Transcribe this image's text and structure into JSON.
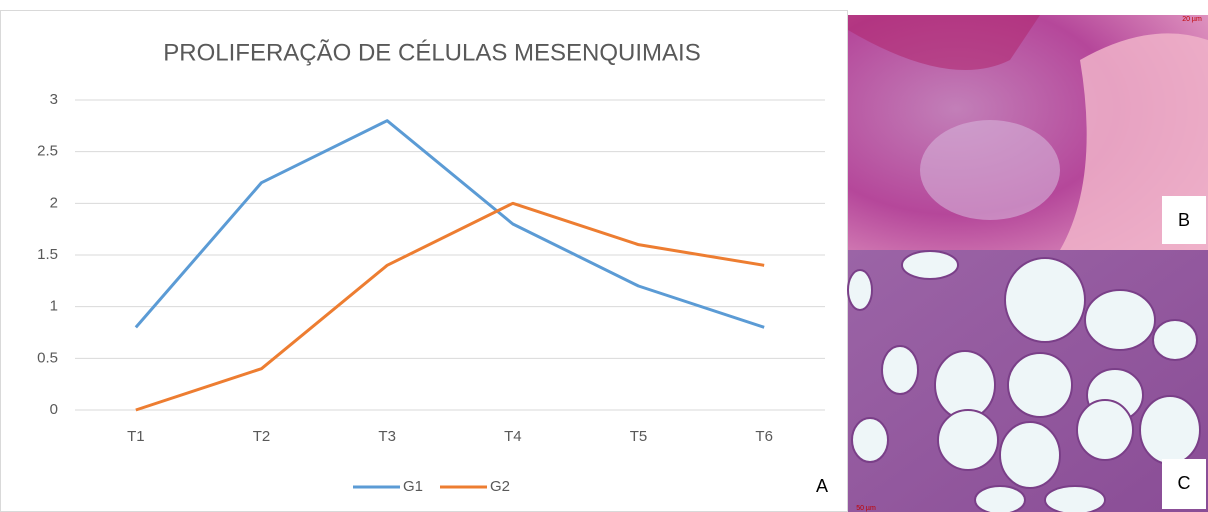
{
  "chart_data": {
    "type": "line",
    "title": "PROLIFERAÇÃO DE CÉLULAS MESENQUIMAIS",
    "categories": [
      "T1",
      "T2",
      "T3",
      "T4",
      "T5",
      "T6"
    ],
    "series": [
      {
        "name": "G1",
        "color": "#5b9bd5",
        "values": [
          0.8,
          2.2,
          2.8,
          1.8,
          1.2,
          0.8
        ]
      },
      {
        "name": "G2",
        "color": "#ed7d31",
        "values": [
          0,
          0.4,
          1.4,
          2,
          1.6,
          1.4
        ]
      }
    ],
    "ylim": [
      0,
      3
    ],
    "yticks": [
      0,
      0.5,
      1,
      1.5,
      2,
      2.5,
      3
    ],
    "grid": true,
    "legend": "bottom"
  },
  "panel_labels": {
    "chart": "A",
    "top_image": "B",
    "bottom_image": "C"
  },
  "scale_bars": {
    "top_image": "20 µm",
    "bottom_image": "50 µm"
  }
}
